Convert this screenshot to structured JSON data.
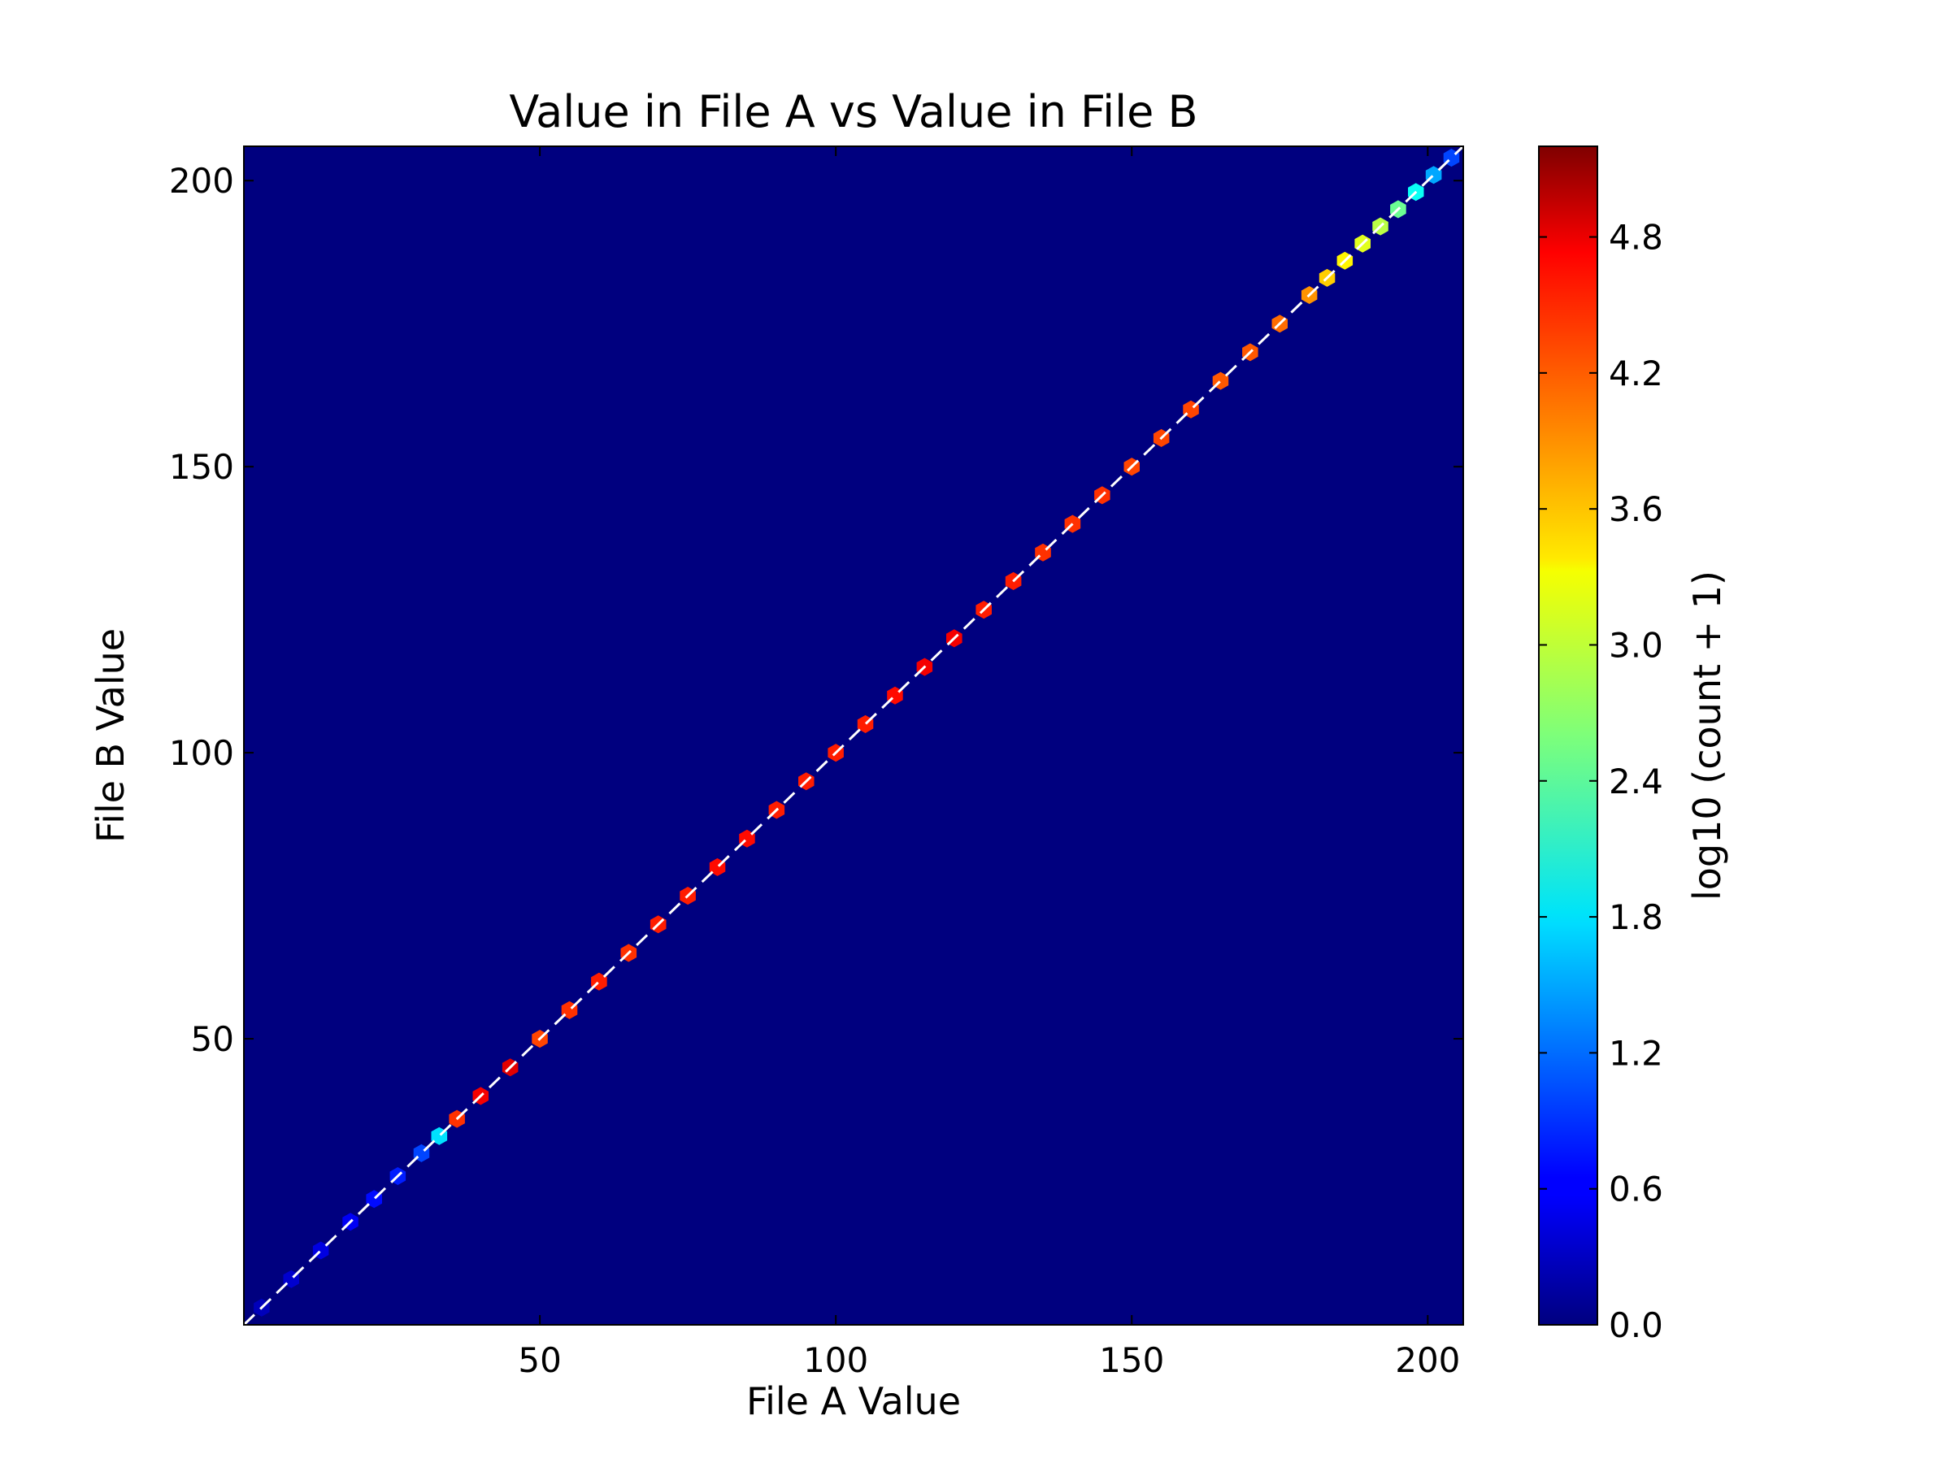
{
  "chart_data": {
    "type": "heatmap",
    "title": "Value in File A vs Value in File B",
    "xlabel": "File A Value",
    "ylabel": "File B Value",
    "xlim": [
      0,
      206
    ],
    "ylim": [
      0,
      206
    ],
    "x_ticks": [
      50,
      100,
      150,
      200
    ],
    "y_ticks": [
      50,
      100,
      150,
      200
    ],
    "grid": false,
    "reference_line": {
      "style": "dashed",
      "color": "#ffffff",
      "from": [
        0,
        0
      ],
      "to": [
        206,
        206
      ]
    },
    "colorbar": {
      "label": "log10 (count + 1)",
      "min": 0,
      "max": 5.2,
      "ticks": [
        "0.0",
        "0.6",
        "1.2",
        "1.8",
        "2.4",
        "3.0",
        "3.6",
        "4.2",
        "4.8"
      ],
      "colormap": "jet"
    },
    "background_color": "#00007f",
    "bin_width": 2,
    "x": [
      3,
      8,
      13,
      18,
      22,
      26,
      30,
      33,
      36,
      40,
      45,
      50,
      55,
      60,
      65,
      70,
      75,
      80,
      85,
      90,
      95,
      100,
      105,
      110,
      115,
      120,
      125,
      130,
      135,
      140,
      145,
      150,
      155,
      160,
      165,
      170,
      175,
      180,
      183,
      186,
      189,
      192,
      195,
      198,
      201,
      204
    ],
    "y": [
      3,
      8,
      13,
      18,
      22,
      26,
      30,
      33,
      36,
      40,
      45,
      50,
      55,
      60,
      65,
      70,
      75,
      80,
      85,
      90,
      95,
      100,
      105,
      110,
      115,
      120,
      125,
      130,
      135,
      140,
      145,
      150,
      155,
      160,
      165,
      170,
      175,
      180,
      183,
      186,
      189,
      192,
      195,
      198,
      201,
      204
    ],
    "values": [
      0.3,
      0.4,
      0.5,
      0.6,
      0.7,
      0.8,
      1.0,
      1.8,
      4.3,
      4.6,
      4.7,
      4.2,
      4.3,
      4.4,
      4.3,
      4.4,
      4.4,
      4.5,
      4.5,
      4.4,
      4.4,
      4.4,
      4.4,
      4.5,
      4.6,
      4.6,
      4.4,
      4.4,
      4.3,
      4.3,
      4.3,
      4.2,
      4.2,
      4.2,
      4.1,
      4.1,
      4.0,
      3.8,
      3.5,
      3.3,
      3.1,
      2.9,
      2.5,
      2.0,
      1.5,
      1.0
    ]
  }
}
